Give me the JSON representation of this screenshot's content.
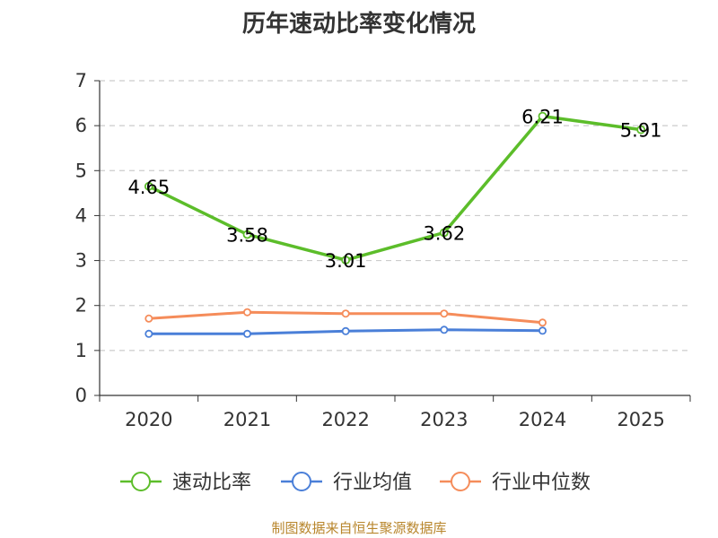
{
  "chart_data": {
    "type": "line",
    "title": "历年速动比率变化情况",
    "categories": [
      "2020",
      "2021",
      "2022",
      "2023",
      "2024",
      "2025"
    ],
    "ylim": [
      0,
      7
    ],
    "yticks": [
      "0",
      "1",
      "2",
      "3",
      "4",
      "5",
      "6",
      "7"
    ],
    "grid": "horizontal dashed",
    "legend_position": "bottom",
    "series": [
      {
        "name": "速动比率",
        "color": "#5cbd2a",
        "values": [
          4.65,
          3.58,
          3.01,
          3.62,
          6.21,
          5.91
        ],
        "labels": [
          "4.65",
          "3.58",
          "3.01",
          "3.62",
          "6.21",
          "5.91"
        ]
      },
      {
        "name": "行业均值",
        "color": "#4a7fd8",
        "values": [
          1.37,
          1.37,
          1.43,
          1.46,
          1.44,
          null
        ]
      },
      {
        "name": "行业中位数",
        "color": "#f58c5a",
        "values": [
          1.71,
          1.85,
          1.82,
          1.82,
          1.62,
          null
        ]
      }
    ]
  },
  "source": "制图数据来自恒生聚源数据库"
}
